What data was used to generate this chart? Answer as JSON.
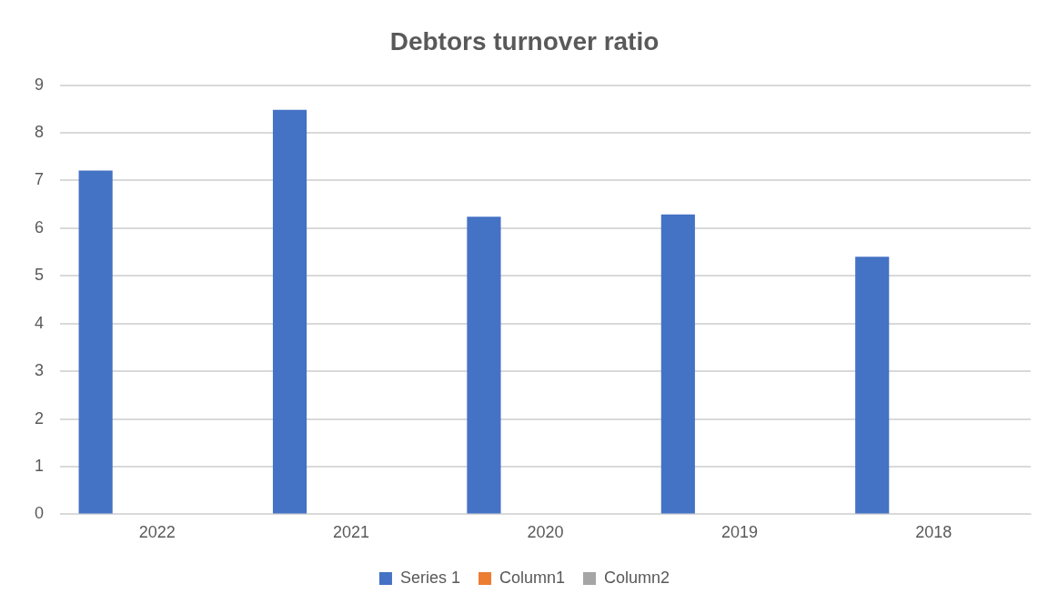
{
  "chart_data": {
    "type": "bar",
    "title": "Debtors turnover ratio",
    "categories": [
      "2022",
      "2021",
      "2020",
      "2019",
      "2018"
    ],
    "series": [
      {
        "name": "Series 1",
        "color": "#4472c4",
        "values": [
          7.21,
          8.48,
          6.24,
          6.29,
          5.4
        ]
      },
      {
        "name": "Column1",
        "color": "#ed7d31",
        "values": [
          null,
          null,
          null,
          null,
          null
        ]
      },
      {
        "name": "Column2",
        "color": "#a5a5a5",
        "values": [
          null,
          null,
          null,
          null,
          null
        ]
      }
    ],
    "ylim": [
      0,
      9
    ],
    "yticks": [
      0,
      1,
      2,
      3,
      4,
      5,
      6,
      7,
      8,
      9
    ],
    "grid": "y",
    "legend": "bottom"
  }
}
